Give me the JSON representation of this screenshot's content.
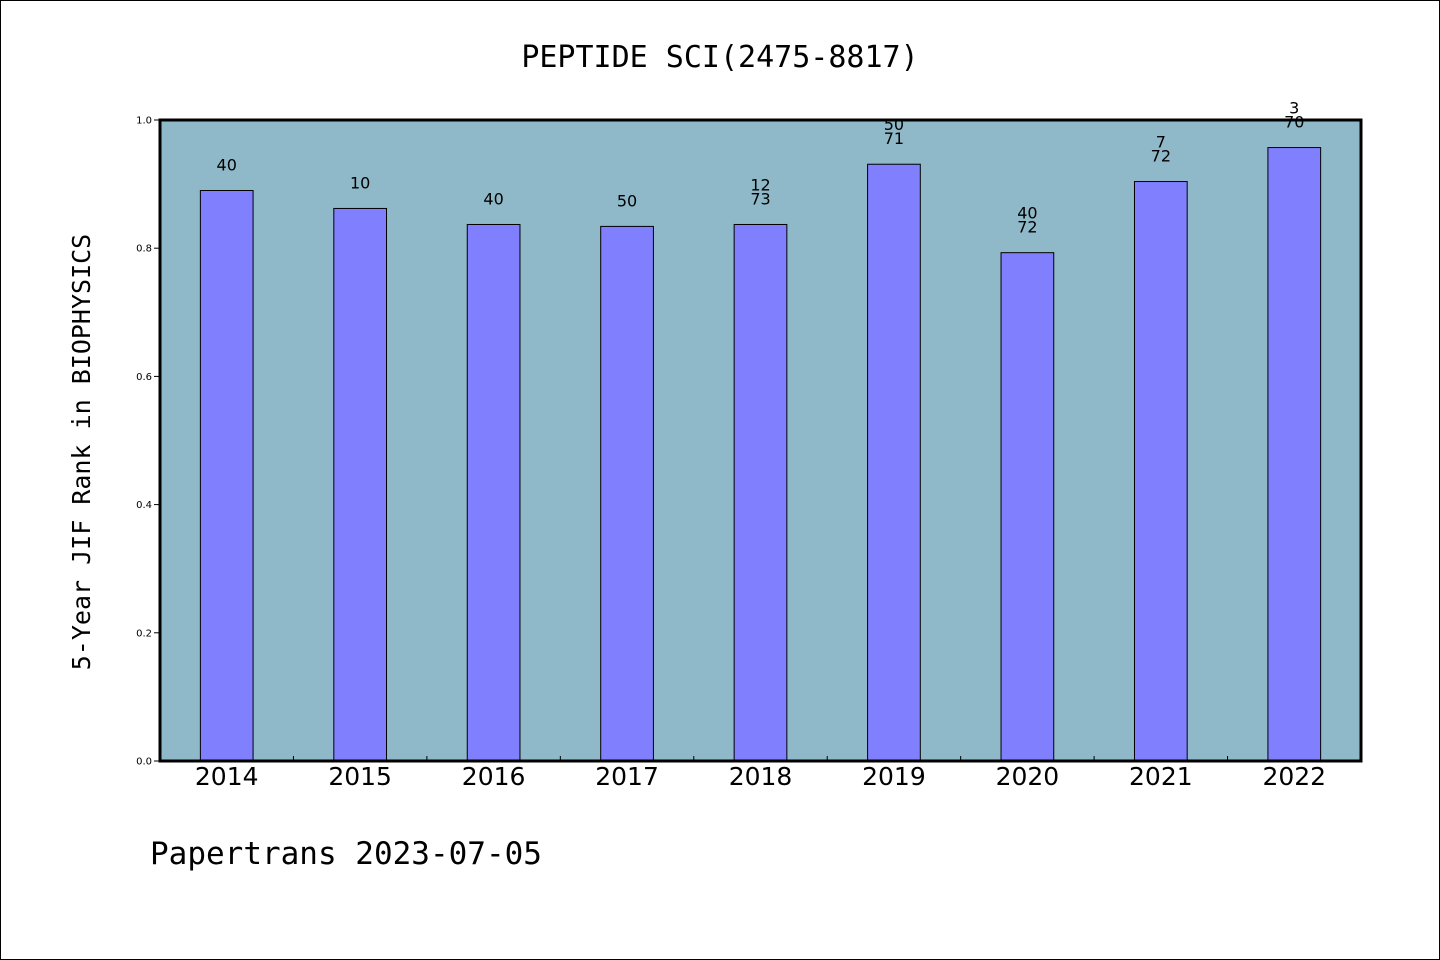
{
  "chart_data": {
    "type": "bar",
    "title": "PEPTIDE SCI(2475-8817)",
    "xlabel": "",
    "ylabel": "5-Year JIF Rank in BIOPHYSICS",
    "ylim": [
      0,
      1.0
    ],
    "yticks": [
      "0.0",
      "0.2",
      "0.4",
      "0.6",
      "0.8",
      "1.0"
    ],
    "grid": false,
    "categories": [
      "2014",
      "2015",
      "2016",
      "2017",
      "2018",
      "2019",
      "2020",
      "2021",
      "2022"
    ],
    "values": [
      0.89,
      0.862,
      0.837,
      0.834,
      0.837,
      0.931,
      0.793,
      0.904,
      0.957
    ],
    "bar_labels": [
      [
        "40"
      ],
      [
        "10"
      ],
      [
        "40"
      ],
      [
        "50"
      ],
      [
        "12",
        "73"
      ],
      [
        "50",
        "71"
      ],
      [
        "40",
        "72"
      ],
      [
        "7",
        "72"
      ],
      [
        "3",
        "70"
      ]
    ],
    "plot_background": "#8fb8c8",
    "bar_color": "#8080ff"
  },
  "footer": "Papertrans 2023-07-05"
}
